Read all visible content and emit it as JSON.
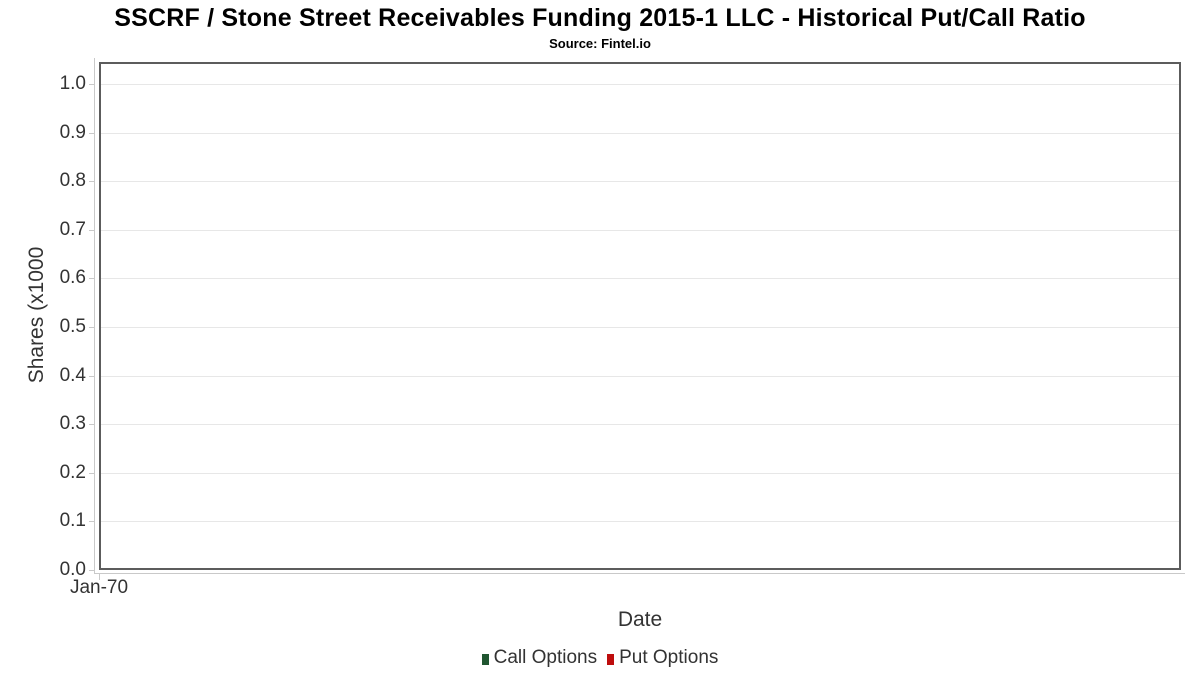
{
  "chart_data": {
    "type": "line",
    "title": "SSCRF / Stone Street Receivables Funding 2015-1 LLC - Historical Put/Call Ratio",
    "subtitle": "Source: Fintel.io",
    "xlabel": "Date",
    "ylabel": "Shares (x1000",
    "xticklabels": [
      "Jan-70"
    ],
    "yticks": [
      0.0,
      0.1,
      0.2,
      0.3,
      0.4,
      0.5,
      0.6,
      0.7,
      0.8,
      0.9,
      1.0
    ],
    "ylim": [
      0.0,
      1.0
    ],
    "grid": true,
    "legend_position": "bottom-center",
    "series": [
      {
        "name": "Call Options",
        "color": "#205630",
        "values": []
      },
      {
        "name": "Put Options",
        "color": "#be0d0d",
        "values": []
      }
    ],
    "colors": {
      "plot_border": "#5c5c5c",
      "gridline": "#e7e7e7",
      "axis_line": "#c9c9c9",
      "tick_text": "#333333",
      "title_text": "#000000"
    }
  }
}
